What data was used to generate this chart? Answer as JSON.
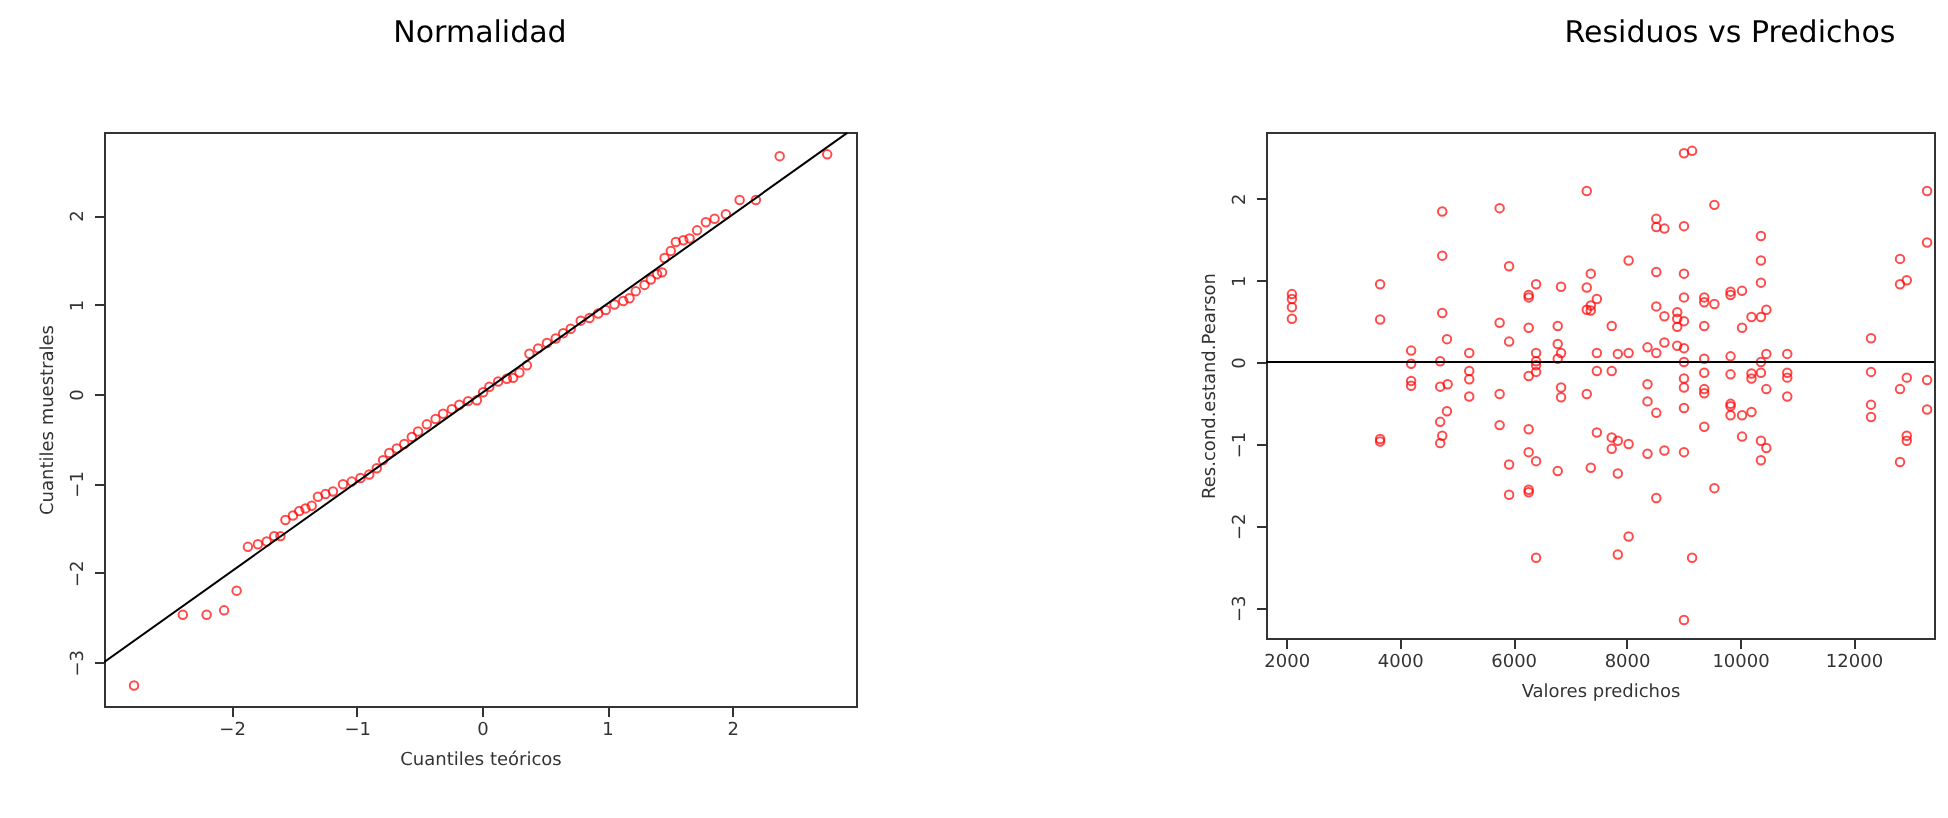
{
  "chart_data": [
    {
      "type": "scatter",
      "title": "Normalidad",
      "xlabel": "Cuantiles teóricos",
      "ylabel": "Cuantiles muestrales",
      "xlim": [
        -3.02,
        2.99
      ],
      "ylim": [
        -3.49,
        2.93
      ],
      "xticks": [
        -2,
        -1,
        0,
        1,
        2
      ],
      "yticks": [
        -3,
        -2,
        -1,
        0,
        1,
        2
      ],
      "grid": false,
      "series": [
        {
          "marker": "circle",
          "color": "#ff0000",
          "x": [
            -2.78,
            -2.39,
            -2.2,
            -2.06,
            -1.96,
            -1.87,
            -1.79,
            -1.72,
            -1.66,
            -1.61,
            -1.57,
            -1.51,
            -1.46,
            -1.41,
            -1.36,
            -1.31,
            -1.25,
            -1.19,
            -1.11,
            -1.04,
            -0.97,
            -0.9,
            -0.84,
            -0.79,
            -0.74,
            -0.68,
            -0.62,
            -0.56,
            -0.51,
            -0.44,
            -0.37,
            -0.31,
            -0.24,
            -0.18,
            -0.11,
            -0.04,
            0.01,
            0.06,
            0.13,
            0.2,
            0.25,
            0.3,
            0.36,
            0.38,
            0.45,
            0.52,
            0.59,
            0.65,
            0.71,
            0.79,
            0.86,
            0.93,
            0.99,
            1.06,
            1.13,
            1.18,
            1.23,
            1.3,
            1.35,
            1.4,
            1.44,
            1.46,
            1.51,
            1.55,
            1.61,
            1.66,
            1.72,
            1.79,
            1.86,
            1.95,
            2.06,
            2.19,
            2.38,
            2.76
          ],
          "values": [
            -3.26,
            -2.47,
            -2.47,
            -2.42,
            -2.2,
            -1.71,
            -1.68,
            -1.65,
            -1.59,
            -1.59,
            -1.41,
            -1.36,
            -1.31,
            -1.28,
            -1.25,
            -1.15,
            -1.12,
            -1.09,
            -1.01,
            -0.98,
            -0.94,
            -0.9,
            -0.83,
            -0.74,
            -0.66,
            -0.61,
            -0.56,
            -0.48,
            -0.42,
            -0.34,
            -0.28,
            -0.22,
            -0.17,
            -0.12,
            -0.08,
            -0.07,
            0.02,
            0.08,
            0.14,
            0.17,
            0.18,
            0.24,
            0.32,
            0.45,
            0.51,
            0.57,
            0.62,
            0.68,
            0.73,
            0.82,
            0.85,
            0.9,
            0.94,
            1.0,
            1.04,
            1.07,
            1.15,
            1.22,
            1.28,
            1.34,
            1.36,
            1.52,
            1.6,
            1.7,
            1.72,
            1.74,
            1.83,
            1.92,
            1.96,
            2.01,
            2.17,
            2.17,
            2.66,
            2.68
          ]
        },
        {
          "type": "line",
          "color": "#000000",
          "x": [
            -3.02,
            2.92
          ],
          "values": [
            -3.0,
            2.92
          ]
        }
      ]
    },
    {
      "type": "scatter",
      "title": "Residuos vs Predichos",
      "xlabel": "Valores predichos",
      "ylabel": "Res.cond.estand.Pearson",
      "xlim": [
        1643,
        13420
      ],
      "ylim": [
        -3.37,
        2.81
      ],
      "xticks": [
        2000,
        4000,
        6000,
        8000,
        10000,
        12000
      ],
      "yticks": [
        -3,
        -2,
        -1,
        0,
        1,
        2
      ],
      "grid": false,
      "marker": "circle",
      "ref_lines": [
        {
          "axis": "y",
          "value": 0,
          "color": "#000000"
        }
      ],
      "series": [
        {
          "color": "#ff0000",
          "x": [
            2100,
            2100,
            2100,
            2100,
            3655,
            3655,
            3655,
            3655,
            4202,
            4202,
            4202,
            4202,
            4750,
            4750,
            4750,
            4833,
            4714,
            4845,
            4714,
            4833,
            4714,
            4750,
            4714,
            5226,
            5226,
            5226,
            5226,
            5762,
            5762,
            5762,
            5762,
            5929,
            5929,
            5929,
            5929,
            6274,
            6274,
            6274,
            6274,
            6274,
            6274,
            6274,
            6274,
            6405,
            6405,
            6405,
            6405,
            6405,
            6405,
            6405,
            6786,
            6786,
            6786,
            6786,
            6845,
            6845,
            6845,
            6845,
            7298,
            7298,
            7298,
            7298,
            7369,
            7369,
            7369,
            7369,
            7476,
            7476,
            7476,
            7476,
            7738,
            7738,
            7738,
            7738,
            7845,
            7845,
            7845,
            7845,
            8036,
            8036,
            8036,
            8036,
            8369,
            8369,
            8369,
            8369,
            8524,
            8524,
            8524,
            8524,
            8524,
            8524,
            8524,
            8667,
            8667,
            8667,
            8667,
            8893,
            8893,
            8893,
            8893,
            9012,
            9012,
            9012,
            9012,
            9012,
            9012,
            9012,
            9012,
            9012,
            9012,
            9012,
            9012,
            9155,
            9155,
            9369,
            9369,
            9369,
            9369,
            9369,
            9369,
            9369,
            9369,
            9548,
            9548,
            9548,
            9833,
            9833,
            9833,
            9833,
            9833,
            9833,
            9833,
            10036,
            10036,
            10036,
            10036,
            10202,
            10202,
            10202,
            10202,
            10369,
            10369,
            10369,
            10369,
            10369,
            10369,
            10369,
            10369,
            10464,
            10464,
            10464,
            10464,
            10833,
            10833,
            10833,
            10833,
            12310,
            12310,
            12310,
            12310,
            12821,
            12821,
            12821,
            12821,
            12940,
            12940,
            12940,
            12940,
            13298,
            13298,
            13298,
            13298
          ],
          "values": [
            0.83,
            0.77,
            0.67,
            0.53,
            0.95,
            0.52,
            -0.94,
            -0.97,
            0.14,
            -0.02,
            -0.23,
            -0.29,
            1.84,
            1.3,
            0.6,
            0.28,
            0.01,
            -0.27,
            -0.3,
            -0.6,
            -0.73,
            -0.9,
            -0.99,
            0.11,
            -0.11,
            -0.21,
            -0.42,
            1.88,
            0.48,
            -0.39,
            -0.77,
            1.17,
            0.25,
            -1.25,
            -1.62,
            0.82,
            0.79,
            0.42,
            -0.17,
            -0.82,
            -1.1,
            -1.56,
            -1.59,
            0.95,
            0.11,
            0.01,
            -0.04,
            -0.12,
            -1.21,
            -2.39,
            0.44,
            0.22,
            0.04,
            -1.33,
            0.92,
            0.11,
            -0.31,
            -0.43,
            2.09,
            0.91,
            0.64,
            -0.39,
            1.08,
            0.69,
            0.63,
            -1.29,
            0.77,
            0.11,
            -0.11,
            -0.86,
            0.44,
            -0.11,
            -0.92,
            -1.06,
            0.1,
            -0.96,
            -1.36,
            -2.35,
            1.24,
            0.11,
            -1.0,
            -2.13,
            0.18,
            -0.27,
            -0.48,
            -1.12,
            1.75,
            1.65,
            1.1,
            0.68,
            0.11,
            -0.62,
            -1.66,
            1.63,
            0.56,
            0.24,
            -1.08,
            0.61,
            0.53,
            0.43,
            0.2,
            2.55,
            1.66,
            1.08,
            0.79,
            0.5,
            0.17,
            0.0,
            -0.2,
            -0.31,
            -0.56,
            -1.1,
            -3.15,
            2.58,
            -2.39,
            0.79,
            0.73,
            0.44,
            0.04,
            -0.13,
            -0.33,
            -0.38,
            -0.79,
            1.92,
            0.71,
            -1.54,
            0.86,
            0.82,
            0.07,
            -0.15,
            -0.51,
            -0.54,
            -0.65,
            0.87,
            0.42,
            -0.65,
            -0.91,
            0.55,
            -0.14,
            -0.2,
            -0.61,
            1.54,
            1.24,
            0.97,
            0.55,
            0.0,
            -0.13,
            -0.96,
            -1.2,
            0.64,
            0.1,
            -0.33,
            -1.05,
            0.1,
            -0.13,
            -0.19,
            -0.42,
            0.29,
            -0.12,
            -0.52,
            -0.67,
            1.26,
            0.95,
            -0.33,
            -1.22,
            1.0,
            -0.19,
            -0.9,
            -0.96,
            2.09,
            1.46,
            -0.22,
            -0.58
          ]
        }
      ]
    }
  ]
}
